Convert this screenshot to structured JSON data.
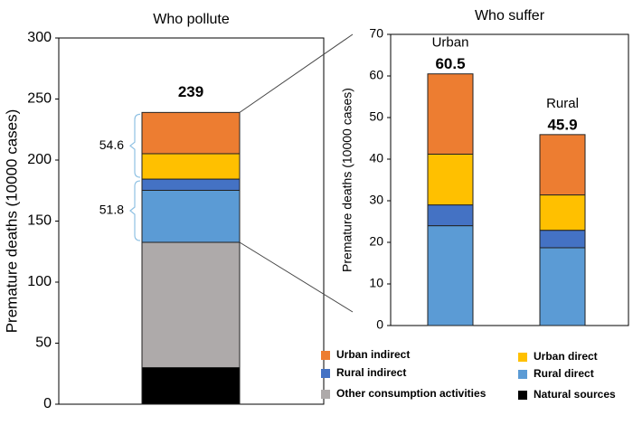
{
  "chart_data": [
    {
      "type": "stacked-bar",
      "title": "Who pollute",
      "y_label": "Premature deaths (10000 cases)",
      "categories": [
        null
      ],
      "series": [
        {
          "name": "Natural sources",
          "color": "#000000",
          "values": [
            30
          ]
        },
        {
          "name": "Other consumption activities",
          "color": "#aeaaaa",
          "values": [
            102.6
          ]
        },
        {
          "name": "Rural direct",
          "color": "#5b9bd5",
          "values": [
            42.6
          ]
        },
        {
          "name": "Rural indirect",
          "color": "#4472c4",
          "values": [
            9.2
          ]
        },
        {
          "name": "Urban direct",
          "color": "#ffc000",
          "values": [
            20.8
          ]
        },
        {
          "name": "Urban indirect",
          "color": "#ed7d31",
          "values": [
            33.8
          ]
        }
      ],
      "totals": [
        239
      ],
      "bracket_values": [
        51.8,
        54.6
      ],
      "ylim": [
        0,
        300
      ],
      "yticks": [
        0,
        50,
        100,
        150,
        200,
        250,
        300
      ]
    },
    {
      "type": "stacked-bar",
      "title": "Who suffer",
      "y_label": "Premature deaths (10000 cases)",
      "categories": [
        "Urban",
        "Rural"
      ],
      "series": [
        {
          "color": "#5b9bd5",
          "values": [
            24,
            18.7
          ]
        },
        {
          "color": "#4472c4",
          "values": [
            5,
            4.2
          ]
        },
        {
          "color": "#ffc000",
          "values": [
            12.2,
            8.5
          ]
        },
        {
          "color": "#ed7d31",
          "values": [
            19.3,
            14.5
          ]
        }
      ],
      "totals": [
        60.5,
        45.9
      ],
      "ylim": [
        0,
        70
      ],
      "yticks": [
        0,
        10,
        20,
        30,
        40,
        50,
        60,
        70
      ]
    }
  ]
}
